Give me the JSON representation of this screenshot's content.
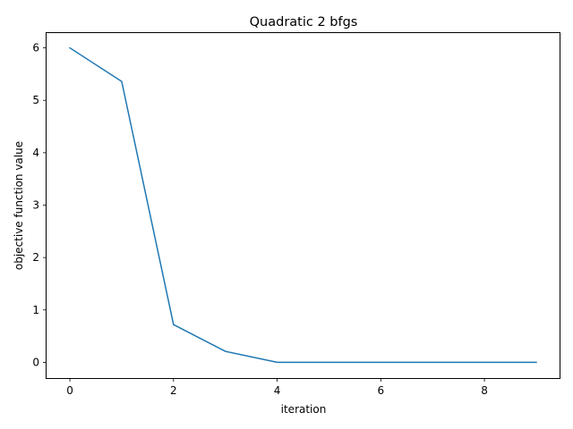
{
  "chart_data": {
    "type": "line",
    "title": "Quadratic 2 bfgs",
    "xlabel": "iteration",
    "ylabel": "objective function value",
    "x": [
      0,
      1,
      2,
      3,
      4,
      5,
      6,
      7,
      8,
      9
    ],
    "series": [
      {
        "values": [
          6.0,
          5.36,
          0.72,
          0.21,
          0.0,
          0.0,
          0.0,
          0.0,
          0.0,
          0.0
        ],
        "color": "#1f77b4"
      }
    ],
    "xlim": [
      -0.45,
      9.45
    ],
    "ylim": [
      -0.3,
      6.3
    ],
    "xticks": [
      0,
      2,
      4,
      6,
      8
    ],
    "yticks": [
      0,
      1,
      2,
      3,
      4,
      5,
      6
    ],
    "grid": false,
    "legend": "none"
  }
}
